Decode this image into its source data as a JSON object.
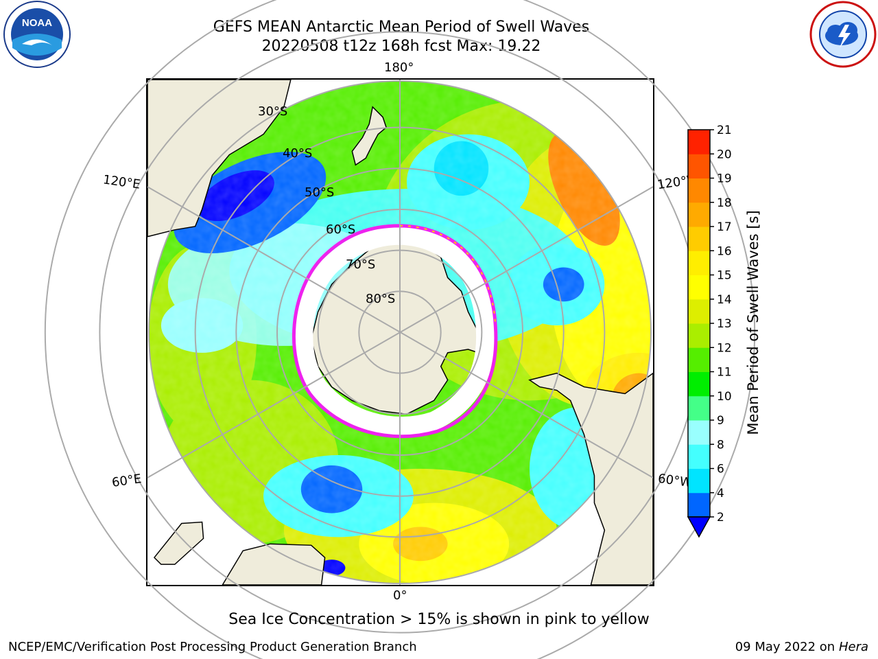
{
  "header": {
    "title_line1": "GEFS MEAN Antarctic Mean Period of Swell Waves",
    "title_line2": "20220508 t12z 168h fcst   Max: 19.22"
  },
  "logos": {
    "left": {
      "text": "NOAA",
      "ring_text": "NATIONAL OCEANIC AND ATMOSPHERIC ADMINISTRATION · U.S. DEPARTMENT OF COMMERCE"
    },
    "right": {
      "ring_text": "NATIONAL WEATHER SERVICE"
    }
  },
  "map": {
    "projection": "south-polar-stereographic",
    "longitude_labels": [
      "180°",
      "120°E",
      "120°W",
      "60°E",
      "60°W",
      "0°"
    ],
    "latitude_labels": [
      "30°S",
      "40°S",
      "50°S",
      "60°S",
      "70°S",
      "80°S"
    ],
    "land_color": "#efecdb",
    "ice_color": "#ffffff",
    "ice_edge_color": "#ee22ee"
  },
  "colorbar": {
    "label": "Mean Period of Swell Waves [s]",
    "ticks": [
      "2",
      "4",
      "6",
      "8",
      "9",
      "10",
      "11",
      "12",
      "13",
      "14",
      "15",
      "16",
      "17",
      "18",
      "19",
      "20",
      "21"
    ],
    "colors": [
      "#0066ff",
      "#00e4ff",
      "#44fffe",
      "#99fffe",
      "#44ff88",
      "#00ee00",
      "#55ee00",
      "#aaee00",
      "#ddee00",
      "#ffff00",
      "#ffee00",
      "#ffcc00",
      "#ffaa00",
      "#ff8800",
      "#ff5500",
      "#ff2200",
      "#ff0000"
    ],
    "under_color": "#0000ff"
  },
  "footer": {
    "note": "Sea Ice Concentration > 15% is shown in pink to yellow",
    "producer": "NCEP/EMC/Verification Post Processing Product Generation Branch",
    "date": "09 May 2022 on",
    "machine": "Hera"
  }
}
